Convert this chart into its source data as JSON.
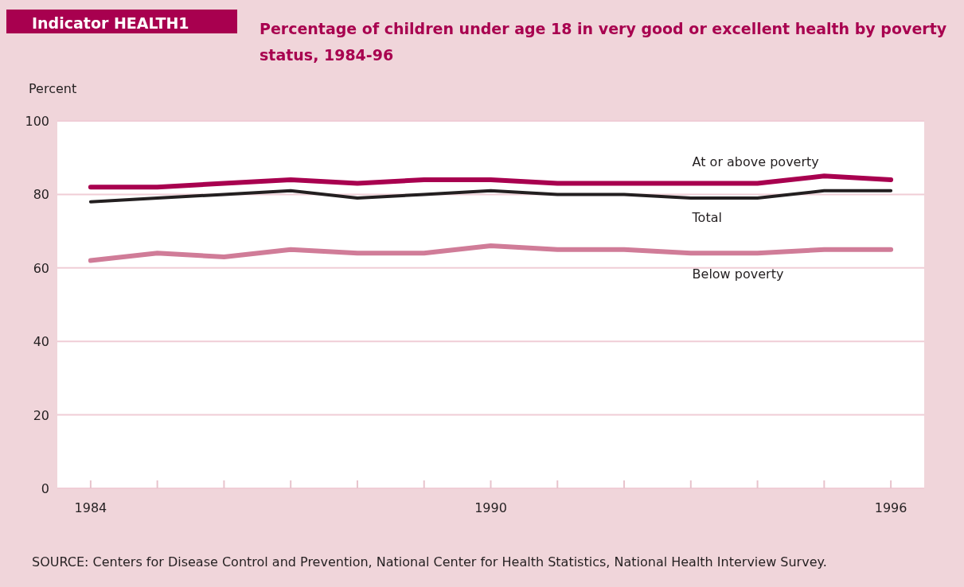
{
  "chart_data": {
    "type": "line",
    "title": "Indicator HEALTH1",
    "subtitle": "Percentage of children under age 18 in very good or excellent health by poverty status, 1984-96",
    "ylabel": "Percent",
    "x": [
      1984,
      1985,
      1986,
      1987,
      1988,
      1989,
      1990,
      1991,
      1992,
      1993,
      1994,
      1995,
      1996
    ],
    "series": [
      {
        "name": "At or above poverty",
        "color": "#a8004f",
        "values": [
          82,
          82,
          83,
          84,
          83,
          84,
          84,
          83,
          83,
          83,
          83,
          85,
          84
        ]
      },
      {
        "name": "Total",
        "color": "#231f20",
        "values": [
          78,
          79,
          80,
          81,
          79,
          80,
          81,
          80,
          80,
          79,
          79,
          81,
          81
        ]
      },
      {
        "name": "Below poverty",
        "color": "#d07c98",
        "values": [
          62,
          64,
          63,
          65,
          64,
          64,
          66,
          65,
          65,
          64,
          64,
          65,
          65
        ]
      }
    ],
    "xlim": [
      1983.5,
      1996.5
    ],
    "xticks": [
      1984,
      {
        "value": 1985,
        "label": null
      },
      {
        "value": 1986,
        "label": null
      },
      {
        "value": 1987,
        "label": null
      },
      {
        "value": 1988,
        "label": null
      },
      {
        "value": 1989,
        "label": null
      },
      1990,
      {
        "value": 1991,
        "label": null
      },
      {
        "value": 1992,
        "label": null
      },
      {
        "value": 1993,
        "label": null
      },
      {
        "value": 1994,
        "label": null
      },
      {
        "value": 1995,
        "label": null
      },
      1996
    ],
    "ylim": [
      0,
      100
    ],
    "yticks": [
      0,
      20,
      40,
      60,
      80,
      100
    ],
    "grid": "y",
    "marker": "none",
    "line_style": "solid",
    "annotations": [
      "SOURCE: Centers for Disease Control and Prevention, National Center for Health Statistics, National Health Interview Survey."
    ]
  }
}
